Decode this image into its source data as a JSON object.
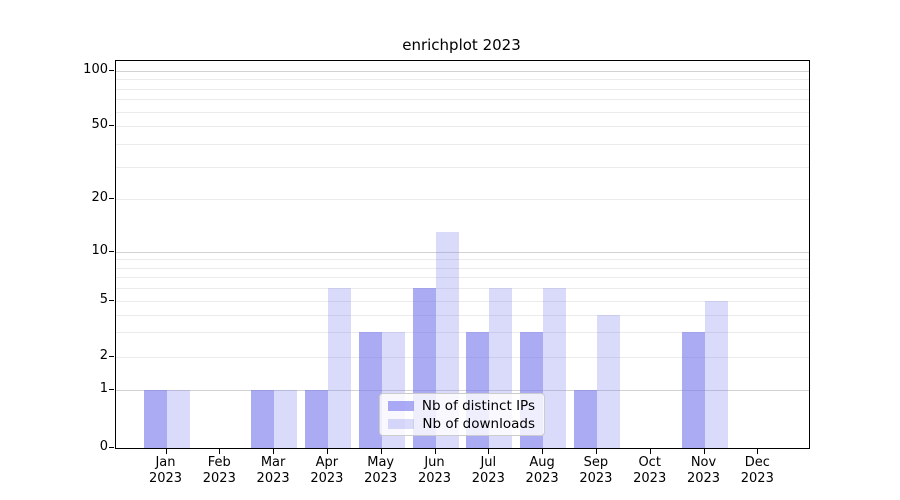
{
  "chart_data": {
    "type": "bar",
    "title": "enrichplot 2023",
    "categories": [
      "Jan 2023",
      "Feb 2023",
      "Mar 2023",
      "Apr 2023",
      "May 2023",
      "Jun 2023",
      "Jul 2023",
      "Aug 2023",
      "Sep 2023",
      "Oct 2023",
      "Nov 2023",
      "Dec 2023"
    ],
    "x_tick_months": [
      "Jan",
      "Feb",
      "Mar",
      "Apr",
      "May",
      "Jun",
      "Jul",
      "Aug",
      "Sep",
      "Oct",
      "Nov",
      "Dec"
    ],
    "x_tick_year": "2023",
    "series": [
      {
        "name": "Nb of distinct IPs",
        "color": "rgba(119,119,238,0.62)",
        "values": [
          1,
          0,
          1,
          1,
          3,
          6,
          3,
          3,
          1,
          0,
          3,
          0
        ]
      },
      {
        "name": "Nb of downloads",
        "color": "rgba(119,119,238,0.27)",
        "values": [
          1,
          0,
          1,
          6,
          3,
          13,
          6,
          6,
          4,
          0,
          5,
          0
        ]
      }
    ],
    "yaxis": {
      "scale": "log-like",
      "tick_values": [
        0,
        1,
        2,
        5,
        10,
        20,
        50,
        100
      ],
      "tick_labels": [
        "0",
        "1",
        "2",
        "5",
        "10",
        "20",
        "50",
        "100"
      ],
      "major_gridlines": [
        1,
        10,
        100
      ],
      "minor_gridlines": [
        2,
        3,
        4,
        5,
        6,
        7,
        8,
        9,
        20,
        30,
        40,
        50,
        60,
        70,
        80,
        90
      ],
      "range": [
        0,
        100
      ]
    },
    "grid": true,
    "legend_position": "lower center"
  },
  "colors": {
    "bar_distinct_ips": "rgba(119,119,238,0.62)",
    "bar_downloads": "rgba(119,119,238,0.27)",
    "grid_major": "#d2d2d2",
    "grid_minor": "#ebebeb",
    "spine": "#000000"
  }
}
